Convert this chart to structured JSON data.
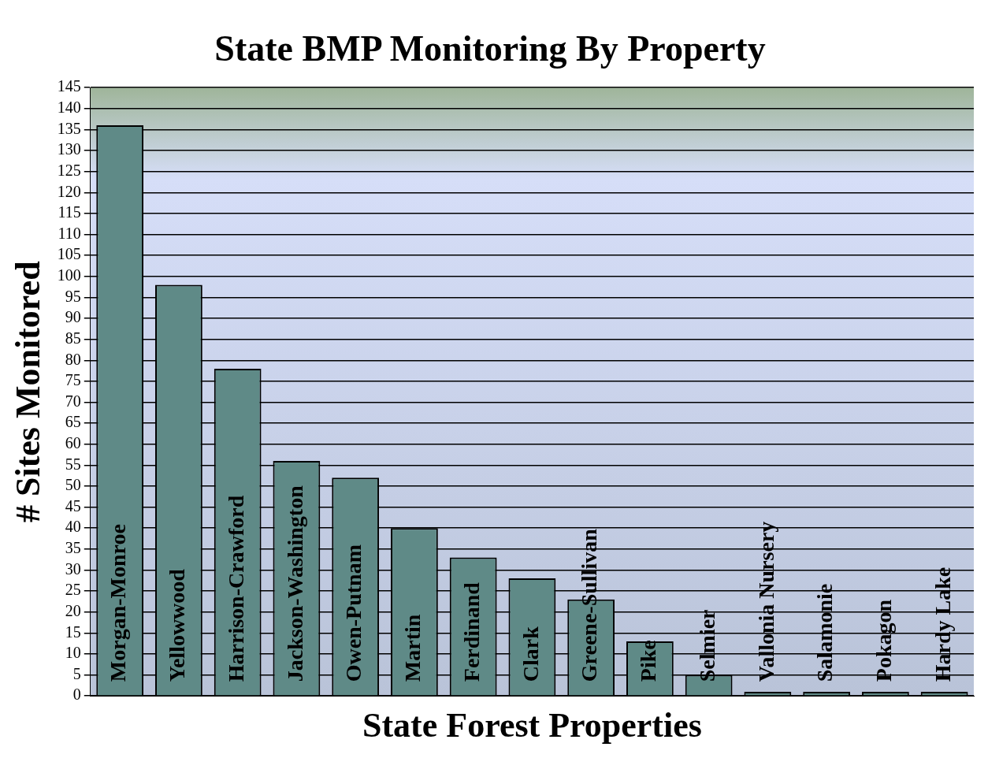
{
  "chart_data": {
    "type": "bar",
    "title": "State BMP Monitoring By Property",
    "xlabel": "State Forest Properties",
    "ylabel": "# Sites Monitored",
    "categories": [
      "Morgan-Monroe",
      "Yellowwood",
      "Harrison-Crawford",
      "Jackson-Washington",
      "Owen-Putnam",
      "Martin",
      "Ferdinand",
      "Clark",
      "Greene-Sullivan",
      "Pike",
      "Selmier",
      "Vallonia Nursery",
      "Salamonie",
      "Pokagon",
      "Hardy Lake"
    ],
    "values": [
      136,
      98,
      78,
      56,
      52,
      40,
      33,
      28,
      23,
      13,
      5,
      1,
      1,
      1,
      1
    ],
    "color": "#5f8a87",
    "ylim": [
      0,
      145
    ],
    "yticks": [
      0,
      5,
      10,
      15,
      20,
      25,
      30,
      35,
      40,
      45,
      50,
      55,
      60,
      65,
      70,
      75,
      80,
      85,
      90,
      95,
      100,
      105,
      110,
      115,
      120,
      125,
      130,
      135,
      140,
      145
    ],
    "grid": "y",
    "legend": false
  }
}
